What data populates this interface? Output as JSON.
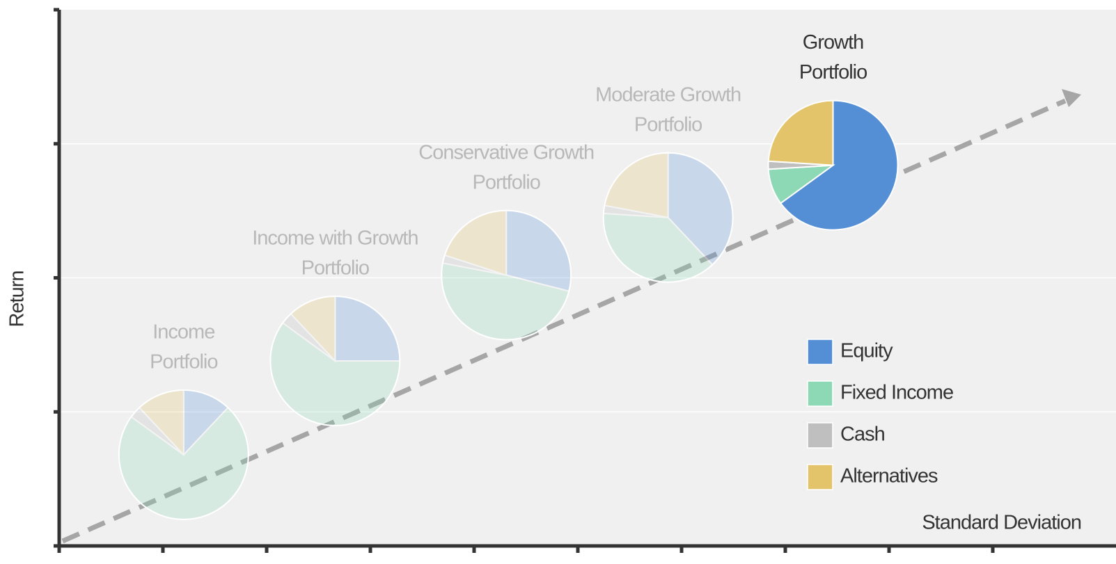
{
  "chart_data": {
    "type": "pie-scatter",
    "x_label": "Standard Deviation",
    "y_label": "Return",
    "xlim": [
      0,
      10
    ],
    "xticks": [
      0,
      1,
      2,
      3,
      4,
      5,
      6,
      7,
      8,
      9
    ],
    "ylim": [
      0,
      4
    ],
    "yticks": [
      0,
      1,
      2,
      3,
      4
    ],
    "grid": true,
    "legend": "lower right",
    "highlight": 4,
    "series": [
      {
        "name": "Equity",
        "color": "#548fd6"
      },
      {
        "name": "Fixed Income",
        "color": "#8dd9b5"
      },
      {
        "name": "Cash",
        "color": "#bfbfbf"
      },
      {
        "name": "Alternatives",
        "color": "#e3c46a"
      }
    ],
    "portfolios": [
      {
        "label": [
          "Income",
          "Portfolio"
        ],
        "x": 1.2,
        "y": 0.68,
        "values": [
          12,
          73,
          3,
          12
        ]
      },
      {
        "label": [
          "Income with Growth",
          "Portfolio"
        ],
        "x": 2.66,
        "y": 1.38,
        "values": [
          25,
          60,
          3,
          12
        ]
      },
      {
        "label": [
          "Conservative Growth",
          "Portfolio"
        ],
        "x": 4.31,
        "y": 2.02,
        "values": [
          29,
          49,
          2,
          20
        ]
      },
      {
        "label": [
          "Moderate Growth",
          "Portfolio"
        ],
        "x": 5.87,
        "y": 2.45,
        "values": [
          38,
          38,
          2,
          22
        ]
      },
      {
        "label": [
          "Growth",
          "Portfolio"
        ],
        "x": 7.46,
        "y": 2.84,
        "values": [
          65,
          9,
          2,
          24
        ]
      }
    ]
  }
}
